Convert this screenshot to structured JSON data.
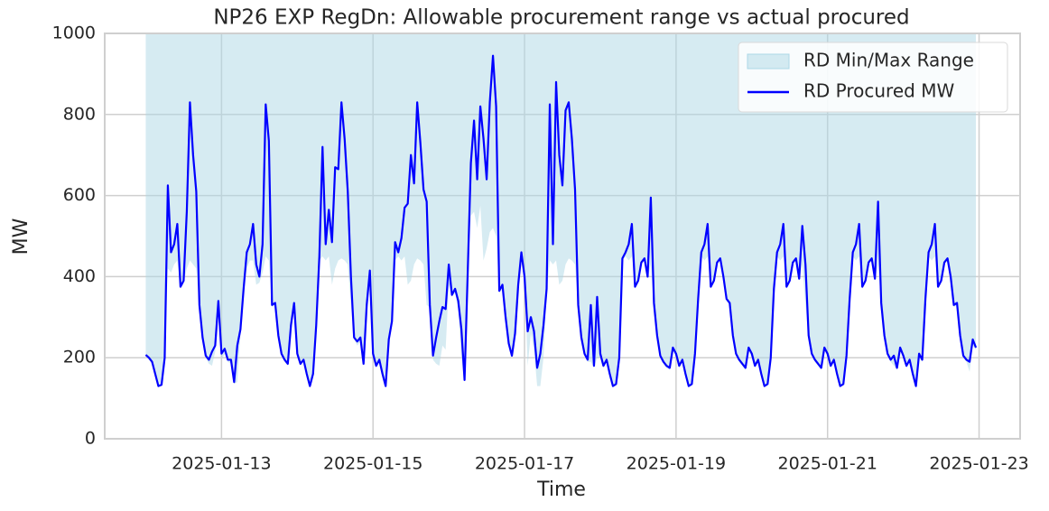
{
  "chart_data": {
    "type": "line",
    "title": "NP26 EXP RegDn: Allowable procurement range vs actual procured",
    "x_label": "Time",
    "y_label": "MW",
    "x": [
      "2025-01-12 00:00",
      "2025-01-12 01:00",
      "2025-01-12 02:00",
      "2025-01-12 03:00",
      "2025-01-12 04:00",
      "2025-01-12 05:00",
      "2025-01-12 06:00",
      "2025-01-12 07:00",
      "2025-01-12 08:00",
      "2025-01-12 09:00",
      "2025-01-12 10:00",
      "2025-01-12 11:00",
      "2025-01-12 12:00",
      "2025-01-12 13:00",
      "2025-01-12 14:00",
      "2025-01-12 15:00",
      "2025-01-12 16:00",
      "2025-01-12 17:00",
      "2025-01-12 18:00",
      "2025-01-12 19:00",
      "2025-01-12 20:00",
      "2025-01-12 21:00",
      "2025-01-12 22:00",
      "2025-01-12 23:00",
      "2025-01-13 00:00",
      "2025-01-13 01:00",
      "2025-01-13 02:00",
      "2025-01-13 03:00",
      "2025-01-13 04:00",
      "2025-01-13 05:00",
      "2025-01-13 06:00",
      "2025-01-13 07:00",
      "2025-01-13 08:00",
      "2025-01-13 09:00",
      "2025-01-13 10:00",
      "2025-01-13 11:00",
      "2025-01-13 12:00",
      "2025-01-13 13:00",
      "2025-01-13 14:00",
      "2025-01-13 15:00",
      "2025-01-13 16:00",
      "2025-01-13 17:00",
      "2025-01-13 18:00",
      "2025-01-13 19:00",
      "2025-01-13 20:00",
      "2025-01-13 21:00",
      "2025-01-13 22:00",
      "2025-01-13 23:00",
      "2025-01-14 00:00",
      "2025-01-14 01:00",
      "2025-01-14 02:00",
      "2025-01-14 03:00",
      "2025-01-14 04:00",
      "2025-01-14 05:00",
      "2025-01-14 06:00",
      "2025-01-14 07:00",
      "2025-01-14 08:00",
      "2025-01-14 09:00",
      "2025-01-14 10:00",
      "2025-01-14 11:00",
      "2025-01-14 12:00",
      "2025-01-14 13:00",
      "2025-01-14 14:00",
      "2025-01-14 15:00",
      "2025-01-14 16:00",
      "2025-01-14 17:00",
      "2025-01-14 18:00",
      "2025-01-14 19:00",
      "2025-01-14 20:00",
      "2025-01-14 21:00",
      "2025-01-14 22:00",
      "2025-01-14 23:00",
      "2025-01-15 00:00",
      "2025-01-15 01:00",
      "2025-01-15 02:00",
      "2025-01-15 03:00",
      "2025-01-15 04:00",
      "2025-01-15 05:00",
      "2025-01-15 06:00",
      "2025-01-15 07:00",
      "2025-01-15 08:00",
      "2025-01-15 09:00",
      "2025-01-15 10:00",
      "2025-01-15 11:00",
      "2025-01-15 12:00",
      "2025-01-15 13:00",
      "2025-01-15 14:00",
      "2025-01-15 15:00",
      "2025-01-15 16:00",
      "2025-01-15 17:00",
      "2025-01-15 18:00",
      "2025-01-15 19:00",
      "2025-01-15 20:00",
      "2025-01-15 21:00",
      "2025-01-15 22:00",
      "2025-01-15 23:00",
      "2025-01-16 00:00",
      "2025-01-16 01:00",
      "2025-01-16 02:00",
      "2025-01-16 03:00",
      "2025-01-16 04:00",
      "2025-01-16 05:00",
      "2025-01-16 06:00",
      "2025-01-16 07:00",
      "2025-01-16 08:00",
      "2025-01-16 09:00",
      "2025-01-16 10:00",
      "2025-01-16 11:00",
      "2025-01-16 12:00",
      "2025-01-16 13:00",
      "2025-01-16 14:00",
      "2025-01-16 15:00",
      "2025-01-16 16:00",
      "2025-01-16 17:00",
      "2025-01-16 18:00",
      "2025-01-16 19:00",
      "2025-01-16 20:00",
      "2025-01-16 21:00",
      "2025-01-16 22:00",
      "2025-01-16 23:00",
      "2025-01-17 00:00",
      "2025-01-17 01:00",
      "2025-01-17 02:00",
      "2025-01-17 03:00",
      "2025-01-17 04:00",
      "2025-01-17 05:00",
      "2025-01-17 06:00",
      "2025-01-17 07:00",
      "2025-01-17 08:00",
      "2025-01-17 09:00",
      "2025-01-17 10:00",
      "2025-01-17 11:00",
      "2025-01-17 12:00",
      "2025-01-17 13:00",
      "2025-01-17 14:00",
      "2025-01-17 15:00",
      "2025-01-17 16:00",
      "2025-01-17 17:00",
      "2025-01-17 18:00",
      "2025-01-17 19:00",
      "2025-01-17 20:00",
      "2025-01-17 21:00",
      "2025-01-17 22:00",
      "2025-01-17 23:00",
      "2025-01-18 00:00",
      "2025-01-18 01:00",
      "2025-01-18 02:00",
      "2025-01-18 03:00",
      "2025-01-18 04:00",
      "2025-01-18 05:00",
      "2025-01-18 06:00",
      "2025-01-18 07:00",
      "2025-01-18 08:00",
      "2025-01-18 09:00",
      "2025-01-18 10:00",
      "2025-01-18 11:00",
      "2025-01-18 12:00",
      "2025-01-18 13:00",
      "2025-01-18 14:00",
      "2025-01-18 15:00",
      "2025-01-18 16:00",
      "2025-01-18 17:00",
      "2025-01-18 18:00",
      "2025-01-18 19:00",
      "2025-01-18 20:00",
      "2025-01-18 21:00",
      "2025-01-18 22:00",
      "2025-01-18 23:00",
      "2025-01-19 00:00",
      "2025-01-19 01:00",
      "2025-01-19 02:00",
      "2025-01-19 03:00",
      "2025-01-19 04:00",
      "2025-01-19 05:00",
      "2025-01-19 06:00",
      "2025-01-19 07:00",
      "2025-01-19 08:00",
      "2025-01-19 09:00",
      "2025-01-19 10:00",
      "2025-01-19 11:00",
      "2025-01-19 12:00",
      "2025-01-19 13:00",
      "2025-01-19 14:00",
      "2025-01-19 15:00",
      "2025-01-19 16:00",
      "2025-01-19 17:00",
      "2025-01-19 18:00",
      "2025-01-19 19:00",
      "2025-01-19 20:00",
      "2025-01-19 21:00",
      "2025-01-19 22:00",
      "2025-01-19 23:00",
      "2025-01-20 00:00",
      "2025-01-20 01:00",
      "2025-01-20 02:00",
      "2025-01-20 03:00",
      "2025-01-20 04:00",
      "2025-01-20 05:00",
      "2025-01-20 06:00",
      "2025-01-20 07:00",
      "2025-01-20 08:00",
      "2025-01-20 09:00",
      "2025-01-20 10:00",
      "2025-01-20 11:00",
      "2025-01-20 12:00",
      "2025-01-20 13:00",
      "2025-01-20 14:00",
      "2025-01-20 15:00",
      "2025-01-20 16:00",
      "2025-01-20 17:00",
      "2025-01-20 18:00",
      "2025-01-20 19:00",
      "2025-01-20 20:00",
      "2025-01-20 21:00",
      "2025-01-20 22:00",
      "2025-01-20 23:00",
      "2025-01-21 00:00",
      "2025-01-21 01:00",
      "2025-01-21 02:00",
      "2025-01-21 03:00",
      "2025-01-21 04:00",
      "2025-01-21 05:00",
      "2025-01-21 06:00",
      "2025-01-21 07:00",
      "2025-01-21 08:00",
      "2025-01-21 09:00",
      "2025-01-21 10:00",
      "2025-01-21 11:00",
      "2025-01-21 12:00",
      "2025-01-21 13:00",
      "2025-01-21 14:00",
      "2025-01-21 15:00",
      "2025-01-21 16:00",
      "2025-01-21 17:00",
      "2025-01-21 18:00",
      "2025-01-21 19:00",
      "2025-01-21 20:00",
      "2025-01-21 21:00",
      "2025-01-21 22:00",
      "2025-01-21 23:00",
      "2025-01-22 00:00",
      "2025-01-22 01:00",
      "2025-01-22 02:00",
      "2025-01-22 03:00",
      "2025-01-22 04:00",
      "2025-01-22 05:00",
      "2025-01-22 06:00",
      "2025-01-22 07:00",
      "2025-01-22 08:00",
      "2025-01-22 09:00",
      "2025-01-22 10:00",
      "2025-01-22 11:00",
      "2025-01-22 12:00",
      "2025-01-22 13:00",
      "2025-01-22 14:00",
      "2025-01-22 15:00",
      "2025-01-22 16:00",
      "2025-01-22 17:00",
      "2025-01-22 18:00",
      "2025-01-22 19:00",
      "2025-01-22 20:00",
      "2025-01-22 21:00",
      "2025-01-22 22:00",
      "2025-01-22 23:00"
    ],
    "series": [
      {
        "name": "RD Min/Max Range",
        "kind": "band",
        "color": "#add8e6",
        "lower": [
          205,
          195,
          185,
          155,
          128,
          130,
          195,
          420,
          410,
          430,
          440,
          370,
          385,
          420,
          440,
          430,
          420,
          325,
          245,
          200,
          185,
          180,
          215,
          310,
          195,
          210,
          190,
          185,
          135,
          140,
          260,
          365,
          420,
          440,
          440,
          380,
          385,
          410,
          450,
          440,
          325,
          330,
          250,
          205,
          190,
          180,
          270,
          330,
          200,
          180,
          190,
          150,
          128,
          155,
          275,
          440,
          450,
          440,
          450,
          380,
          420,
          440,
          445,
          440,
          430,
          330,
          245,
          230,
          240,
          180,
          320,
          400,
          200,
          175,
          190,
          150,
          128,
          240,
          285,
          440,
          450,
          440,
          450,
          380,
          390,
          430,
          445,
          440,
          430,
          330,
          325,
          195,
          185,
          180,
          230,
          220,
          380,
          350,
          360,
          320,
          200,
          140,
          400,
          550,
          560,
          520,
          575,
          440,
          470,
          510,
          520,
          500,
          360,
          370,
          295,
          230,
          200,
          250,
          370,
          440,
          390,
          180,
          260,
          220,
          130,
          130,
          200,
          360,
          440,
          430,
          440,
          380,
          390,
          430,
          445,
          440,
          430,
          325,
          245,
          205,
          190,
          190,
          175,
          200,
          200,
          175,
          190,
          150,
          128,
          130,
          195,
          440,
          450,
          440,
          450,
          370,
          385,
          430,
          440,
          395,
          430,
          330,
          250,
          200,
          185,
          175,
          170,
          220,
          200,
          175,
          190,
          150,
          128,
          130,
          205,
          340,
          450,
          440,
          450,
          370,
          385,
          430,
          440,
          395,
          340,
          330,
          250,
          205,
          190,
          180,
          170,
          220,
          200,
          175,
          190,
          150,
          128,
          130,
          195,
          365,
          450,
          440,
          450,
          370,
          385,
          430,
          440,
          390,
          430,
          330,
          250,
          205,
          190,
          180,
          170,
          220,
          200,
          175,
          190,
          150,
          128,
          130,
          200,
          340,
          450,
          440,
          450,
          370,
          385,
          430,
          440,
          390,
          430,
          330,
          250,
          205,
          190,
          180,
          170,
          220,
          200,
          175,
          190,
          150,
          128,
          200,
          190,
          340,
          450,
          440,
          450,
          370,
          385,
          430,
          440,
          395,
          325,
          330,
          250,
          200,
          190,
          165,
          230,
          220
        ],
        "upper": [
          1000,
          1000,
          1000,
          1000,
          1000,
          1000,
          1000,
          1000,
          1000,
          1000,
          1000,
          1000,
          1000,
          1000,
          1000,
          1000,
          1000,
          1000,
          1000,
          1000,
          1000,
          1000,
          1000,
          1000,
          1000,
          1000,
          1000,
          1000,
          1000,
          1000,
          1000,
          1000,
          1000,
          1000,
          1000,
          1000,
          1000,
          1000,
          1000,
          1000,
          1000,
          1000,
          1000,
          1000,
          1000,
          1000,
          1000,
          1000,
          1000,
          1000,
          1000,
          1000,
          1000,
          1000,
          1000,
          1000,
          1000,
          1000,
          1000,
          1000,
          1000,
          1000,
          1000,
          1000,
          1000,
          1000,
          1000,
          1000,
          1000,
          1000,
          1000,
          1000,
          1000,
          1000,
          1000,
          1000,
          1000,
          1000,
          1000,
          1000,
          1000,
          1000,
          1000,
          1000,
          1000,
          1000,
          1000,
          1000,
          1000,
          1000,
          1000,
          1000,
          1000,
          1000,
          1000,
          1000,
          1000,
          1000,
          1000,
          1000,
          1000,
          1000,
          1000,
          1000,
          1000,
          1000,
          1000,
          1000,
          1000,
          1000,
          1000,
          1000,
          1000,
          1000,
          1000,
          1000,
          1000,
          1000,
          1000,
          1000,
          1000,
          1000,
          1000,
          1000,
          1000,
          1000,
          1000,
          1000,
          1000,
          1000,
          1000,
          1000,
          1000,
          1000,
          1000,
          1000,
          1000,
          1000,
          1000,
          1000,
          1000,
          1000,
          1000,
          1000,
          1000,
          1000,
          1000,
          1000,
          1000,
          1000,
          1000,
          1000,
          1000,
          1000,
          1000,
          1000,
          1000,
          1000,
          1000,
          1000,
          1000,
          1000,
          1000,
          1000,
          1000,
          1000,
          1000,
          1000,
          1000,
          1000,
          1000,
          1000,
          1000,
          1000,
          1000,
          1000,
          1000,
          1000,
          1000,
          1000,
          1000,
          1000,
          1000,
          1000,
          1000,
          1000,
          1000,
          1000,
          1000,
          1000,
          1000,
          1000,
          1000,
          1000,
          1000,
          1000,
          1000,
          1000,
          1000,
          1000,
          1000,
          1000,
          1000,
          1000,
          1000,
          1000,
          1000,
          1000,
          1000,
          1000,
          1000,
          1000,
          1000,
          1000,
          1000,
          1000,
          1000,
          1000,
          1000,
          1000,
          1000,
          1000,
          1000,
          1000,
          1000,
          1000,
          1000,
          1000,
          1000,
          1000,
          1000,
          1000,
          1000,
          1000,
          1000,
          1000,
          1000,
          1000,
          1000,
          1000,
          1000,
          1000,
          1000,
          1000,
          1000,
          1000,
          1000,
          1000,
          1000,
          1000,
          1000,
          1000,
          1000,
          1000,
          1000,
          1000,
          1000,
          1000,
          1000,
          1000,
          1000,
          1000,
          1000,
          1000
        ]
      },
      {
        "name": "RD Procured MW",
        "kind": "line",
        "color": "#0000ff",
        "values": [
          207,
          200,
          190,
          160,
          130,
          133,
          200,
          625,
          460,
          480,
          530,
          375,
          390,
          560,
          830,
          700,
          610,
          330,
          250,
          205,
          195,
          215,
          230,
          340,
          210,
          222,
          195,
          195,
          140,
          230,
          270,
          370,
          460,
          480,
          530,
          430,
          400,
          480,
          825,
          735,
          330,
          335,
          255,
          210,
          195,
          185,
          280,
          335,
          210,
          185,
          195,
          160,
          130,
          160,
          280,
          450,
          720,
          480,
          565,
          485,
          670,
          665,
          830,
          740,
          610,
          400,
          250,
          240,
          250,
          185,
          330,
          415,
          210,
          180,
          195,
          160,
          130,
          245,
          290,
          485,
          460,
          495,
          570,
          580,
          700,
          630,
          830,
          730,
          615,
          585,
          330,
          205,
          250,
          290,
          325,
          320,
          430,
          355,
          370,
          340,
          270,
          145,
          410,
          680,
          785,
          640,
          820,
          740,
          640,
          830,
          945,
          820,
          365,
          380,
          300,
          235,
          205,
          260,
          380,
          460,
          400,
          265,
          300,
          265,
          175,
          210,
          280,
          370,
          825,
          480,
          880,
          700,
          625,
          810,
          830,
          740,
          615,
          330,
          250,
          210,
          195,
          330,
          180,
          350,
          210,
          180,
          195,
          160,
          130,
          135,
          200,
          445,
          460,
          480,
          530,
          375,
          390,
          435,
          445,
          400,
          595,
          335,
          255,
          205,
          190,
          180,
          175,
          225,
          210,
          180,
          195,
          160,
          130,
          135,
          210,
          345,
          460,
          480,
          530,
          375,
          390,
          435,
          445,
          400,
          345,
          335,
          255,
          210,
          195,
          185,
          175,
          225,
          210,
          180,
          195,
          160,
          130,
          135,
          200,
          370,
          460,
          480,
          530,
          375,
          390,
          435,
          445,
          395,
          525,
          430,
          255,
          210,
          195,
          185,
          175,
          225,
          210,
          180,
          195,
          160,
          130,
          135,
          205,
          345,
          460,
          480,
          530,
          375,
          390,
          435,
          445,
          395,
          585,
          335,
          255,
          210,
          195,
          205,
          175,
          225,
          205,
          180,
          195,
          160,
          130,
          210,
          195,
          345,
          460,
          480,
          530,
          375,
          390,
          435,
          445,
          400,
          330,
          335,
          255,
          205,
          195,
          190,
          245,
          225
        ]
      }
    ],
    "xlim": [
      "2025-01-11 11:00",
      "2025-01-23 13:00"
    ],
    "xticks": [
      "2025-01-13",
      "2025-01-15",
      "2025-01-17",
      "2025-01-19",
      "2025-01-21",
      "2025-01-23"
    ],
    "ylim": [
      0,
      1000
    ],
    "yticks": [
      0,
      200,
      400,
      600,
      800,
      1000
    ],
    "grid": true,
    "legend": "upper right"
  }
}
